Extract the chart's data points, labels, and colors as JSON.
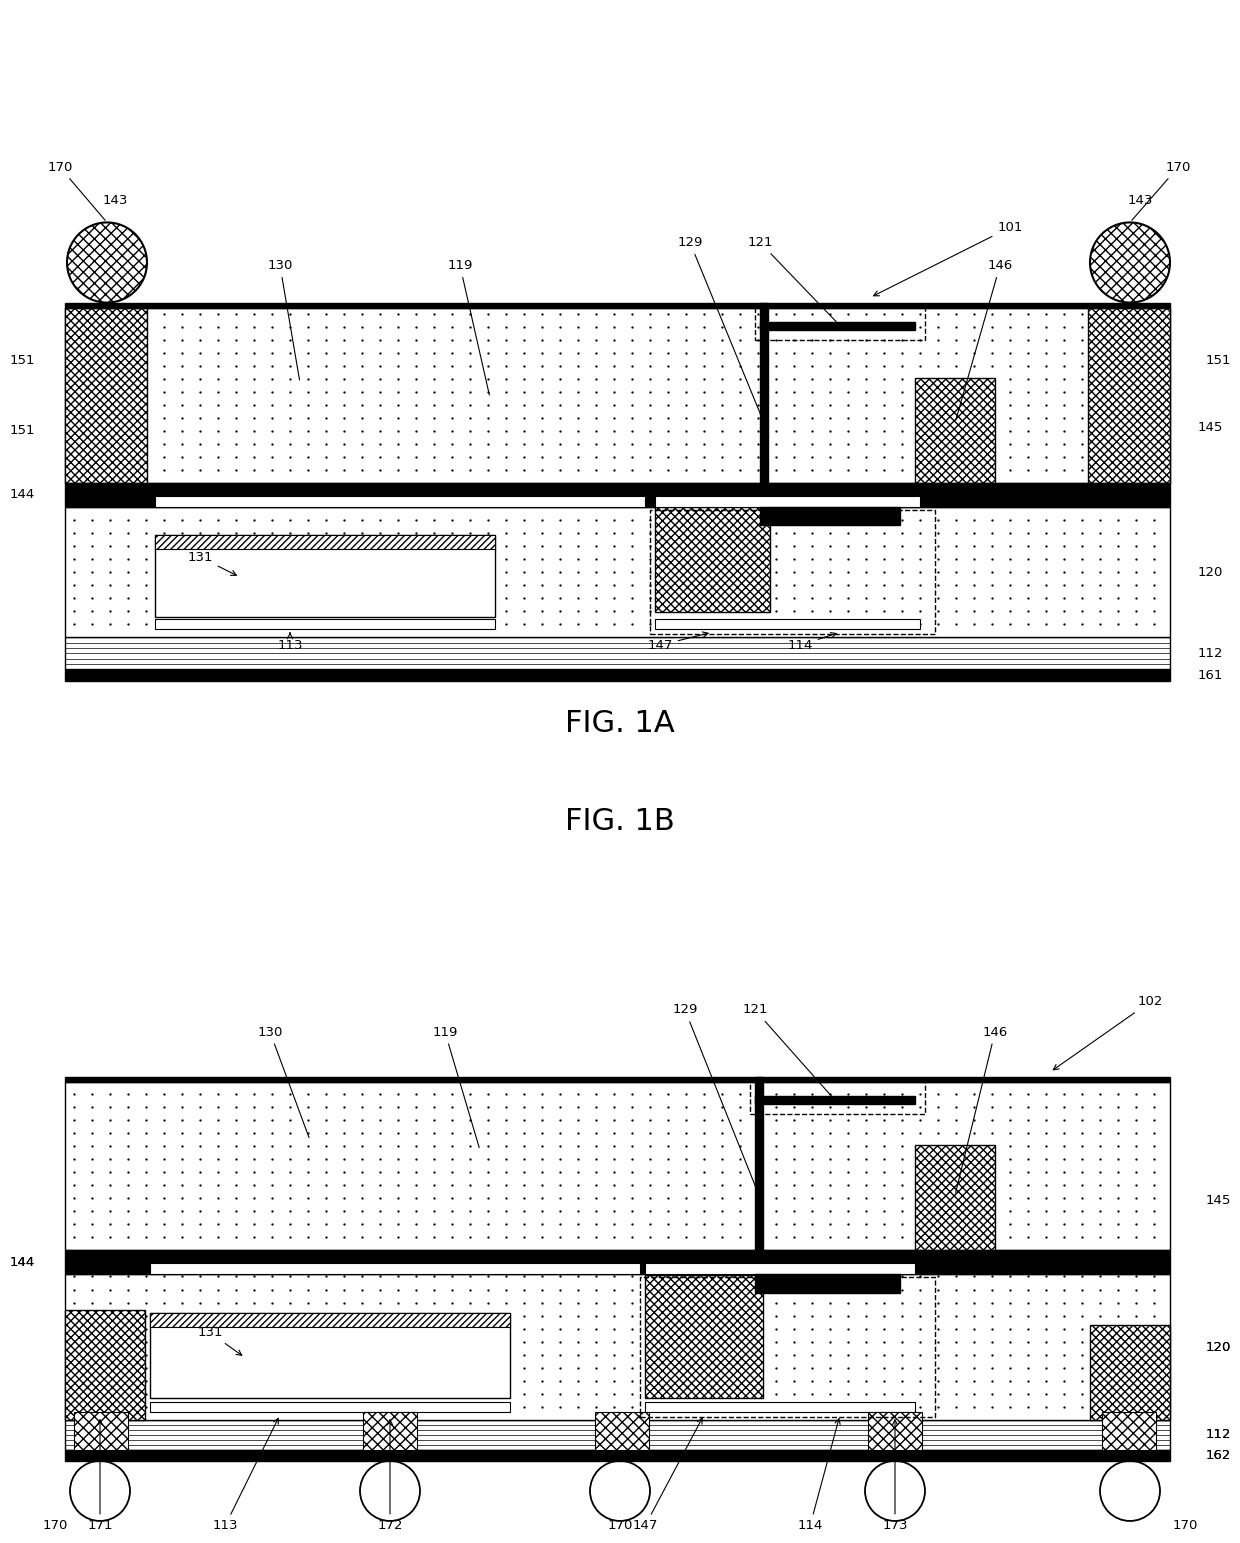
{
  "fig_width": 12.4,
  "fig_height": 15.43,
  "background": "#ffffff"
}
